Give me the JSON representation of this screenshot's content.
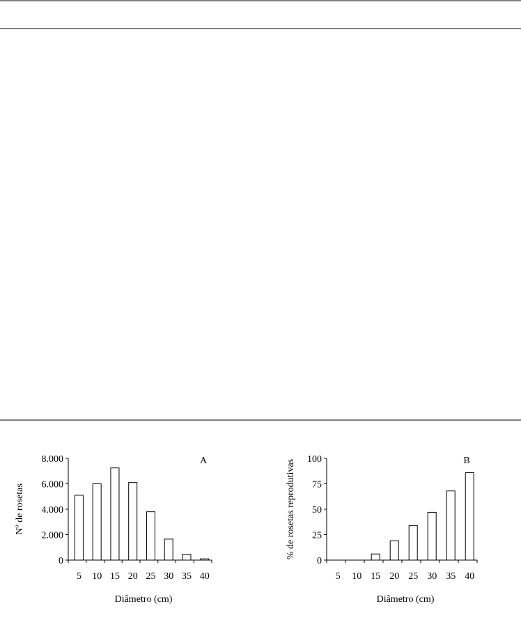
{
  "chart_data": [
    {
      "type": "bar",
      "annotation": "A",
      "x_label": "Diâmetro (cm)",
      "y_label": "Nº de rosetas",
      "categories": [
        "5",
        "10",
        "15",
        "20",
        "25",
        "30",
        "35",
        "40"
      ],
      "values": [
        5100,
        6000,
        7250,
        6100,
        3800,
        1650,
        450,
        100
      ],
      "color": "#ffffff",
      "ylim": [
        0,
        8000
      ],
      "yticks": [
        0,
        {
          "value": 2000,
          "label": "2.000"
        },
        {
          "value": 4000,
          "label": "4.000"
        },
        {
          "value": 6000,
          "label": "6.000"
        },
        {
          "value": 8000,
          "label": "8.000"
        }
      ]
    },
    {
      "type": "bar",
      "annotation": "B",
      "x_label": "Diâmetro (cm)",
      "y_label": "% de rosetas reprodutivas",
      "categories": [
        "5",
        "10",
        "15",
        "20",
        "25",
        "30",
        "35",
        "40"
      ],
      "values": [
        0,
        0,
        6,
        19,
        34,
        47,
        68,
        86
      ],
      "color": "#ffffff",
      "ylim": [
        0,
        100
      ],
      "yticks": [
        0,
        25,
        50,
        75,
        100
      ]
    }
  ]
}
